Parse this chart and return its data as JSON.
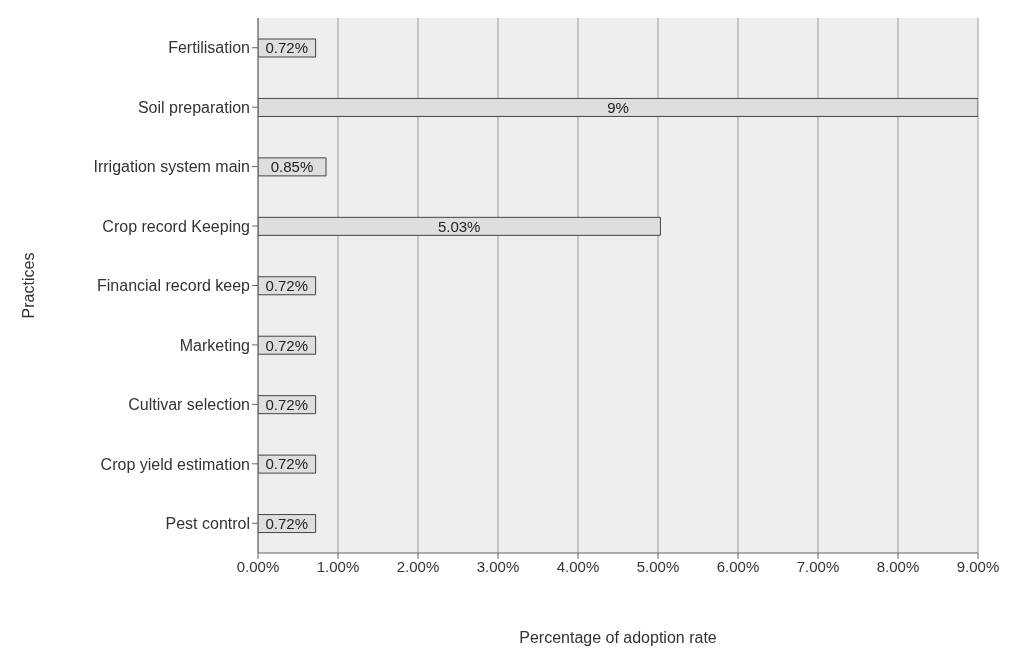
{
  "chart_data": {
    "type": "bar",
    "orientation": "horizontal",
    "xlabel": "Percentage of adoption rate",
    "ylabel": "Practices",
    "categories": [
      "Fertilisation",
      "Soil preparation",
      "Irrigation system main",
      "Crop record Keeping",
      "Financial record keep",
      "Marketing",
      "Cultivar selection",
      "Crop yield estimation",
      "Pest control"
    ],
    "values": [
      0.72,
      9,
      0.85,
      5.03,
      0.72,
      0.72,
      0.72,
      0.72,
      0.72
    ],
    "value_labels": [
      "0.72%",
      "9%",
      "0.85%",
      "5.03%",
      "0.72%",
      "0.72%",
      "0.72%",
      "0.72%",
      "0.72%"
    ],
    "color": "#dedede",
    "xlim": [
      0,
      9
    ],
    "xticks": [
      {
        "value": 0,
        "label": "0.00%"
      },
      {
        "value": 1,
        "label": "1.00%"
      },
      {
        "value": 2,
        "label": "2.00%"
      },
      {
        "value": 3,
        "label": "3.00%"
      },
      {
        "value": 4,
        "label": "4.00%"
      },
      {
        "value": 5,
        "label": "5.00%"
      },
      {
        "value": 6,
        "label": "6.00%"
      },
      {
        "value": 7,
        "label": "7.00%"
      },
      {
        "value": 8,
        "label": "8.00%"
      },
      {
        "value": 9,
        "label": "9.00%"
      }
    ],
    "grid": "x",
    "legend": false
  }
}
